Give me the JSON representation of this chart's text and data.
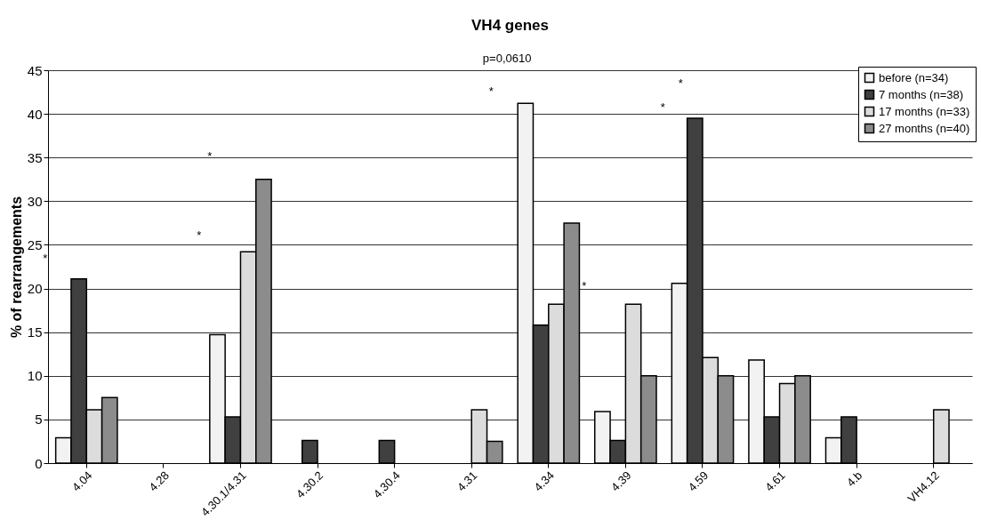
{
  "chart_data": {
    "type": "bar",
    "title": "VH4 genes",
    "ylabel": "% of rearrangements",
    "categories": [
      "4.04",
      "4.28",
      "4.30.1/4.31",
      "4.30.2",
      "4.30.4",
      "4.31",
      "4.34",
      "4.39",
      "4.59",
      "4.61",
      "4.b",
      "VH4.12"
    ],
    "series": [
      {
        "name": "before (n=34)",
        "color": "#f2f2f2",
        "values": [
          2.9,
          0,
          14.7,
          0,
          0,
          0,
          41.2,
          5.9,
          20.6,
          11.8,
          2.9,
          0
        ]
      },
      {
        "name": "7 months (n=38)",
        "color": "#404040",
        "values": [
          21.1,
          0,
          5.3,
          2.6,
          2.6,
          0,
          15.8,
          2.6,
          39.5,
          5.3,
          5.3,
          0
        ]
      },
      {
        "name": "17 months (n=33)",
        "color": "#dcdcdc",
        "values": [
          6.1,
          0,
          24.2,
          0,
          0,
          6.1,
          18.2,
          18.2,
          12.1,
          9.1,
          0,
          6.1
        ]
      },
      {
        "name": "27 months (n=40)",
        "color": "#8c8c8c",
        "values": [
          7.5,
          0,
          32.5,
          0,
          0,
          2.5,
          27.5,
          10,
          10,
          10,
          0,
          0
        ]
      }
    ],
    "ylim": [
      0,
      45
    ],
    "yticks": [
      0,
      5,
      10,
      15,
      20,
      25,
      30,
      35,
      40,
      45
    ],
    "grid": "y",
    "legend": "top right",
    "annotations": [
      "*",
      "*",
      "*",
      "*",
      "p=0,0610",
      "*",
      "*",
      "*"
    ]
  }
}
